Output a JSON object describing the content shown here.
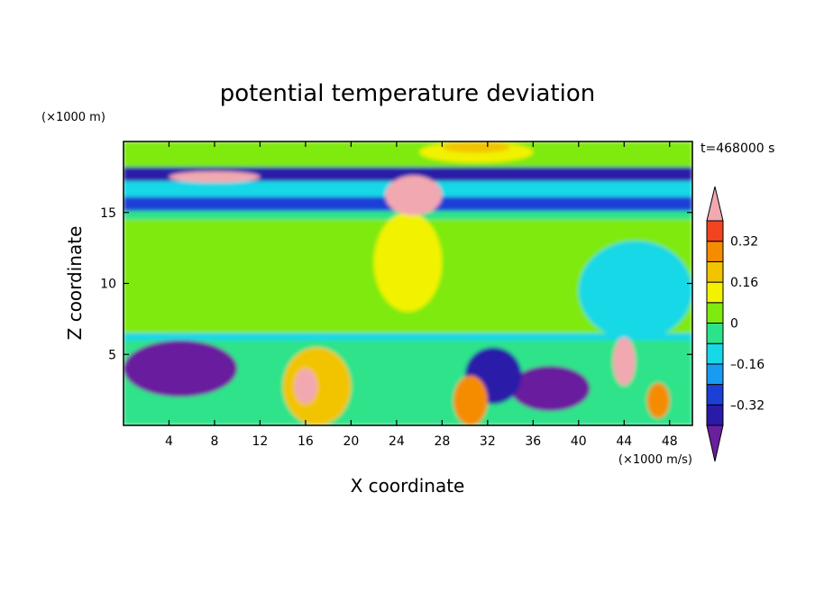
{
  "chart_data": {
    "type": "heatmap",
    "title": "potential temperature deviation",
    "xlabel": "X coordinate",
    "ylabel": "Z coordinate",
    "x_unit": "(×1000 m/s)",
    "y_unit": "(×1000 m)",
    "time_label": "t=468000 s",
    "xlim": [
      0,
      50
    ],
    "ylim": [
      0,
      20
    ],
    "x_ticks": [
      "4",
      "8",
      "12",
      "16",
      "20",
      "24",
      "28",
      "32",
      "36",
      "40",
      "44",
      "48"
    ],
    "x_tick_values": [
      4,
      8,
      12,
      16,
      20,
      24,
      28,
      32,
      36,
      40,
      44,
      48
    ],
    "y_ticks": [
      "5",
      "10",
      "15"
    ],
    "y_tick_values": [
      5,
      10,
      15
    ],
    "colorbar": {
      "levels": [
        -0.48,
        -0.4,
        -0.32,
        -0.24,
        -0.16,
        -0.08,
        0,
        0.08,
        0.16,
        0.24,
        0.32,
        0.4
      ],
      "colors": [
        "#6a1f9e",
        "#2a1aa8",
        "#1c3fd6",
        "#1a9bf2",
        "#17d8e6",
        "#2de38a",
        "#7eea10",
        "#f2f200",
        "#f2c400",
        "#f58c00",
        "#f24420",
        "#f2a8b0"
      ],
      "tick_labels": [
        "0.32",
        "0.16",
        "0",
        "–0.16",
        "–0.32"
      ],
      "tick_values": [
        0.32,
        0.16,
        0,
        -0.16,
        -0.32
      ]
    },
    "field_regions": [
      {
        "x": [
          0,
          50
        ],
        "z": [
          18.2,
          20
        ],
        "value": 0.02
      },
      {
        "x": [
          26,
          36
        ],
        "z": [
          18.5,
          20
        ],
        "value": 0.1
      },
      {
        "x": [
          28,
          34
        ],
        "z": [
          19.2,
          20
        ],
        "value": 0.2
      },
      {
        "x": [
          0,
          50
        ],
        "z": [
          17.2,
          18.2
        ],
        "value": -0.35
      },
      {
        "x": [
          0,
          50
        ],
        "z": [
          16.1,
          17.2
        ],
        "value": -0.15
      },
      {
        "x": [
          0,
          50
        ],
        "z": [
          15.1,
          16.1
        ],
        "value": -0.3
      },
      {
        "x": [
          0,
          50
        ],
        "z": [
          14.5,
          15.1
        ],
        "value": -0.06
      },
      {
        "x": [
          0,
          50
        ],
        "z": [
          6.5,
          14.5
        ],
        "value": 0.03
      },
      {
        "x": [
          0,
          50
        ],
        "z": [
          6.0,
          6.5
        ],
        "value": -0.1
      },
      {
        "x": [
          0,
          50
        ],
        "z": [
          0,
          6.0
        ],
        "value": -0.06
      },
      {
        "x": [
          40,
          50
        ],
        "z": [
          6,
          13
        ],
        "value": -0.1
      },
      {
        "x": [
          22,
          28
        ],
        "z": [
          8,
          15
        ],
        "value": 0.12
      },
      {
        "x": [
          4,
          12
        ],
        "z": [
          17.1,
          17.9
        ],
        "value": 0.45
      },
      {
        "x": [
          23,
          28
        ],
        "z": [
          14.8,
          17.6
        ],
        "value": 0.45
      },
      {
        "x": [
          43,
          45
        ],
        "z": [
          2.8,
          6.2
        ],
        "value": 0.45
      },
      {
        "x": [
          0,
          10
        ],
        "z": [
          2,
          6
        ],
        "value": -0.45
      },
      {
        "x": [
          34,
          41
        ],
        "z": [
          1,
          4.2
        ],
        "value": -0.45
      },
      {
        "x": [
          30,
          35
        ],
        "z": [
          1.5,
          5.5
        ],
        "value": -0.35
      },
      {
        "x": [
          14,
          20
        ],
        "z": [
          0,
          5.5
        ],
        "value": 0.22
      },
      {
        "x": [
          15,
          17
        ],
        "z": [
          1.5,
          4
        ],
        "value": 0.45
      },
      {
        "x": [
          29,
          32
        ],
        "z": [
          0,
          3.5
        ],
        "value": 0.3
      },
      {
        "x": [
          46,
          48
        ],
        "z": [
          0.5,
          3
        ],
        "value": 0.3
      }
    ]
  }
}
